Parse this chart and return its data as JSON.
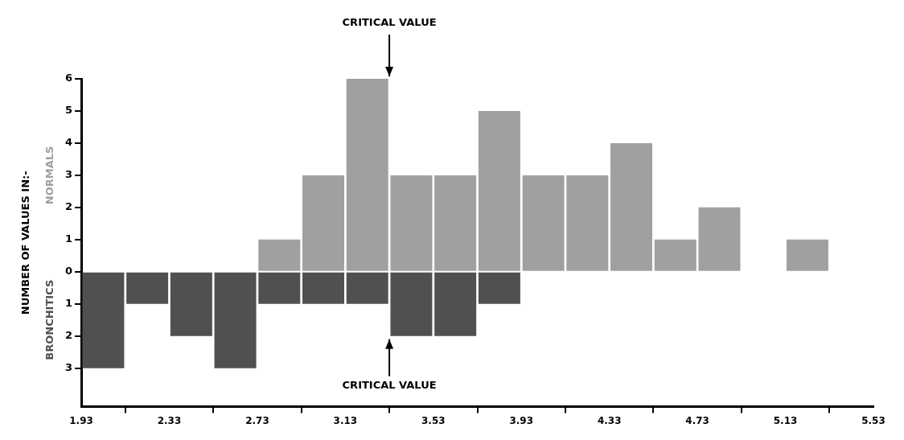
{
  "chart_data": {
    "type": "histogram",
    "ylabel": "NUMBER OF VALUES IN:-",
    "bins": [
      1.93,
      2.13,
      2.33,
      2.53,
      2.73,
      2.93,
      3.13,
      3.33,
      3.53,
      3.73,
      3.93,
      4.13,
      4.33,
      4.53,
      4.73,
      4.93,
      5.13,
      5.33
    ],
    "series": [
      {
        "name": "NORMALS",
        "color": "#a0a0a0",
        "values": [
          0,
          0,
          0,
          0,
          1,
          3,
          6,
          3,
          3,
          5,
          3,
          3,
          4,
          1,
          2,
          0,
          1
        ]
      },
      {
        "name": "BRONCHITICS",
        "color": "#505050",
        "values": [
          -3,
          -1,
          -2,
          -3,
          -1,
          -1,
          -1,
          -2,
          -2,
          -1,
          0,
          0,
          0,
          0,
          0,
          0,
          0
        ]
      }
    ],
    "xlim": [
      1.93,
      5.53
    ],
    "xticks": [
      1.93,
      2.33,
      2.73,
      3.13,
      3.53,
      3.93,
      4.33,
      4.73,
      5.13,
      5.53
    ],
    "ylim": [
      -4.2,
      6
    ],
    "yticks": [
      {
        "value": -3,
        "label": "3"
      },
      {
        "value": -2,
        "label": "2"
      },
      {
        "value": -1,
        "label": "1"
      },
      0,
      1,
      2,
      3,
      4,
      5,
      6
    ],
    "annotations": [
      {
        "text": "CRITICAL VALUE",
        "x": 3.33,
        "y": 6
      },
      {
        "text": "CRITICAL VALUE",
        "x": 3.33,
        "y": -2
      }
    ],
    "grid": false,
    "legend": false
  }
}
